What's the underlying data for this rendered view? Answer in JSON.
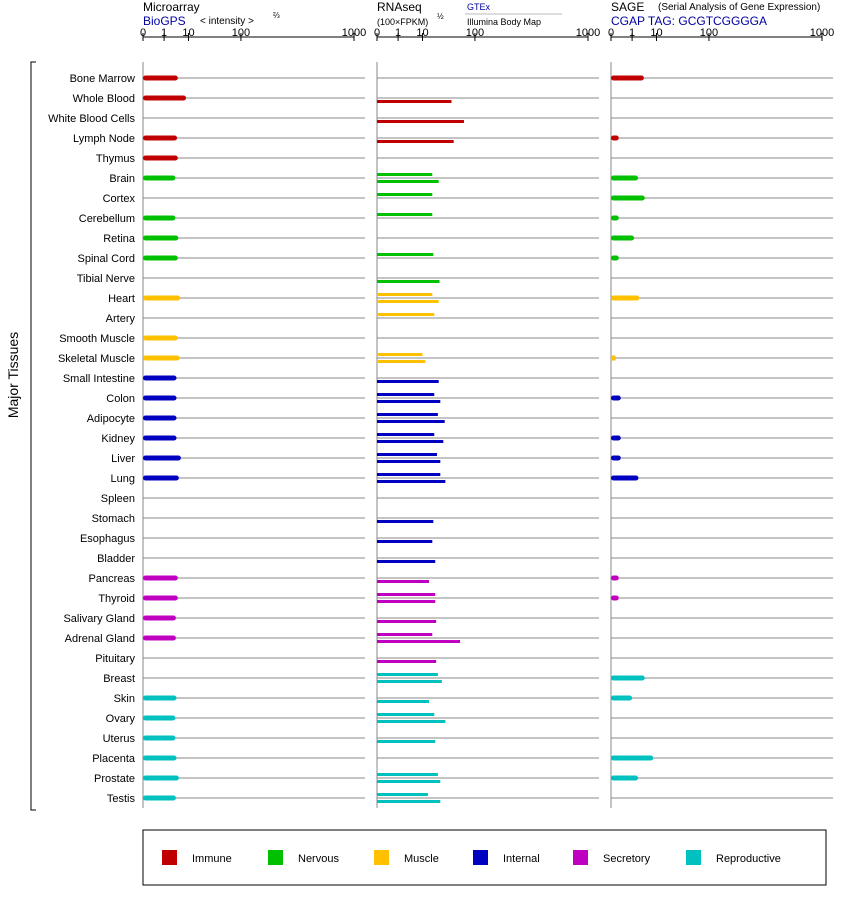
{
  "panels": {
    "microarray": {
      "title": "Microarray",
      "link": "BioGPS",
      "scale_prefix": "< intensity >",
      "scale_exp": "⅔"
    },
    "rnaseq": {
      "title": "RNAseq",
      "scale_prefix": "(100×FPKM)",
      "scale_exp": "½",
      "link": "GTEx",
      "subtitle": "Illumina Body Map"
    },
    "sage": {
      "title": "SAGE",
      "subtitle": "(Serial Analysis of Gene Expression)",
      "link": "CGAP TAG: GCGTCGGGGA"
    }
  },
  "side_label": "Major Tissues",
  "chart_data": {
    "type": "bar",
    "orientation": "horizontal",
    "x_scale": "power",
    "ticks": [
      "0",
      "1",
      "10",
      "100",
      "1000"
    ],
    "xlim": [
      0,
      1000
    ],
    "grid": true,
    "legend_position": "bottom",
    "categories": [
      "Bone Marrow",
      "Whole Blood",
      "White Blood Cells",
      "Lymph Node",
      "Thymus",
      "Brain",
      "Cortex",
      "Cerebellum",
      "Retina",
      "Spinal Cord",
      "Tibial Nerve",
      "Heart",
      "Artery",
      "Smooth Muscle",
      "Skeletal Muscle",
      "Small Intestine",
      "Colon",
      "Adipocyte",
      "Kidney",
      "Liver",
      "Lung",
      "Spleen",
      "Stomach",
      "Esophagus",
      "Bladder",
      "Pancreas",
      "Thyroid",
      "Salivary Gland",
      "Adrenal Gland",
      "Pituitary",
      "Breast",
      "Skin",
      "Ovary",
      "Uterus",
      "Placenta",
      "Prostate",
      "Testis"
    ],
    "groups": [
      "immune",
      "immune",
      "immune",
      "immune",
      "immune",
      "nervous",
      "nervous",
      "nervous",
      "nervous",
      "nervous",
      "nervous",
      "muscle",
      "muscle",
      "muscle",
      "muscle",
      "internal",
      "internal",
      "internal",
      "internal",
      "internal",
      "internal",
      "internal",
      "internal",
      "internal",
      "internal",
      "secretory",
      "secretory",
      "secretory",
      "secretory",
      "secretory",
      "reproductive",
      "reproductive",
      "reproductive",
      "reproductive",
      "reproductive",
      "reproductive",
      "reproductive"
    ],
    "group_colors": {
      "immune": "#c00000",
      "nervous": "#00c000",
      "muscle": "#ffc000",
      "internal": "#0000c0",
      "secretory": "#c000c0",
      "reproductive": "#00c0c0"
    },
    "legend": [
      {
        "key": "immune",
        "label": "Immune"
      },
      {
        "key": "nervous",
        "label": "Nervous"
      },
      {
        "key": "muscle",
        "label": "Muscle"
      },
      {
        "key": "internal",
        "label": "Internal"
      },
      {
        "key": "secretory",
        "label": "Secretory"
      },
      {
        "key": "reproductive",
        "label": "Reproductive"
      }
    ],
    "microarray": [
      4.5,
      8.5,
      null,
      4.2,
      4.5,
      3.6,
      null,
      3.6,
      4.7,
      4.5,
      null,
      5.5,
      null,
      4.5,
      5.2,
      4.0,
      4.0,
      4.0,
      4.0,
      5.8,
      4.9,
      null,
      null,
      null,
      null,
      4.5,
      4.5,
      3.8,
      3.8,
      null,
      null,
      4.0,
      3.6,
      3.6,
      4.0,
      4.9,
      3.8
    ],
    "rnaseq": [
      [
        null,
        null
      ],
      [
        null,
        44
      ],
      [
        null,
        70
      ],
      [
        null,
        48
      ],
      [
        null,
        null
      ],
      [
        18,
        25
      ],
      [
        18,
        null
      ],
      [
        18,
        null
      ],
      [
        null,
        null
      ],
      [
        19,
        null
      ],
      [
        null,
        26
      ],
      [
        18,
        25
      ],
      [
        20,
        null
      ],
      [
        null,
        null
      ],
      [
        10,
        12
      ],
      [
        null,
        25
      ],
      [
        20,
        27
      ],
      [
        24,
        33
      ],
      [
        20,
        31
      ],
      [
        23,
        27
      ],
      [
        27,
        34
      ],
      [
        null,
        null
      ],
      [
        null,
        19
      ],
      [
        null,
        18
      ],
      [
        null,
        21
      ],
      [
        null,
        15
      ],
      [
        21,
        21
      ],
      [
        null,
        22
      ],
      [
        18,
        61
      ],
      [
        null,
        22
      ],
      [
        24,
        29
      ],
      [
        null,
        15
      ],
      [
        20,
        34
      ],
      [
        null,
        21
      ],
      [
        null,
        null
      ],
      [
        24,
        27
      ],
      [
        14,
        27
      ]
    ],
    "sage": [
      3.8,
      null,
      null,
      0.05,
      null,
      2.1,
      4.1,
      0.05,
      1.3,
      0.05,
      null,
      2.4,
      null,
      null,
      0.01,
      null,
      0.1,
      null,
      0.1,
      0.1,
      2.2,
      null,
      null,
      null,
      null,
      0.05,
      0.05,
      null,
      null,
      null,
      4.1,
      1.0,
      null,
      null,
      8.0,
      2.1,
      null
    ]
  }
}
